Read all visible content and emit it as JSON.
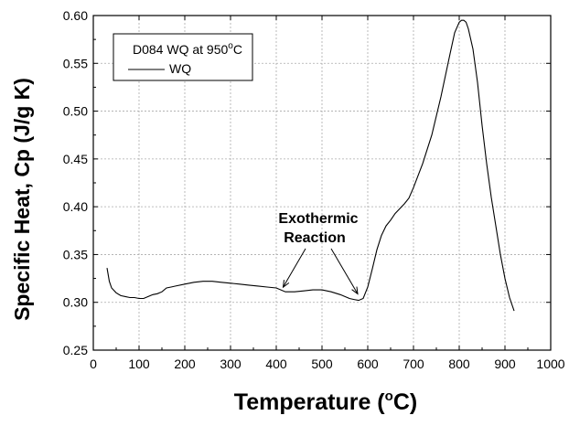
{
  "chart_data": {
    "type": "line",
    "xlabel_main": "Temperature (",
    "xlabel_sup": "o",
    "xlabel_end": "C)",
    "ylabel": "Specific Heat, Cp (J/g K)",
    "xlim": [
      0,
      1000
    ],
    "ylim": [
      0.25,
      0.6
    ],
    "x_ticks": [
      0,
      100,
      200,
      300,
      400,
      500,
      600,
      700,
      800,
      900,
      1000
    ],
    "y_ticks": [
      0.25,
      0.3,
      0.35,
      0.4,
      0.45,
      0.5,
      0.55,
      0.6
    ],
    "x_tick_labels": [
      "0",
      "100",
      "200",
      "300",
      "400",
      "500",
      "600",
      "700",
      "800",
      "900",
      "1000"
    ],
    "y_tick_labels": [
      "0.25",
      "0.30",
      "0.35",
      "0.40",
      "0.45",
      "0.50",
      "0.55",
      "0.60"
    ],
    "grid": true,
    "legend": {
      "title_main": "D084 WQ at 950",
      "title_sup": "o",
      "title_end": "C",
      "entry": "WQ",
      "placement": "top-left"
    },
    "annotation": {
      "line1": "Exothermic",
      "line2": "Reaction",
      "targets": [
        [
          415,
          0.312
        ],
        [
          578,
          0.305
        ]
      ],
      "text_at": [
        500,
        0.36
      ]
    },
    "series": [
      {
        "name": "WQ",
        "color": "#000000",
        "x": [
          30,
          35,
          40,
          50,
          60,
          70,
          80,
          90,
          100,
          110,
          120,
          130,
          140,
          150,
          160,
          170,
          180,
          200,
          220,
          240,
          260,
          280,
          300,
          320,
          340,
          360,
          380,
          400,
          420,
          440,
          460,
          480,
          500,
          520,
          540,
          560,
          570,
          580,
          590,
          600,
          610,
          620,
          630,
          640,
          650,
          660,
          670,
          680,
          690,
          700,
          720,
          740,
          760,
          780,
          790,
          800,
          805,
          810,
          815,
          820,
          830,
          840,
          850,
          860,
          870,
          880,
          890,
          900,
          910,
          920
        ],
        "y": [
          0.336,
          0.322,
          0.315,
          0.31,
          0.307,
          0.306,
          0.305,
          0.305,
          0.304,
          0.304,
          0.306,
          0.308,
          0.309,
          0.311,
          0.315,
          0.316,
          0.317,
          0.319,
          0.321,
          0.322,
          0.322,
          0.321,
          0.32,
          0.319,
          0.318,
          0.317,
          0.316,
          0.315,
          0.311,
          0.311,
          0.312,
          0.313,
          0.313,
          0.311,
          0.308,
          0.304,
          0.303,
          0.302,
          0.304,
          0.316,
          0.335,
          0.355,
          0.37,
          0.38,
          0.386,
          0.393,
          0.398,
          0.403,
          0.409,
          0.42,
          0.445,
          0.475,
          0.515,
          0.56,
          0.582,
          0.593,
          0.595,
          0.595,
          0.593,
          0.586,
          0.565,
          0.53,
          0.485,
          0.445,
          0.41,
          0.38,
          0.35,
          0.325,
          0.305,
          0.291
        ]
      }
    ]
  }
}
